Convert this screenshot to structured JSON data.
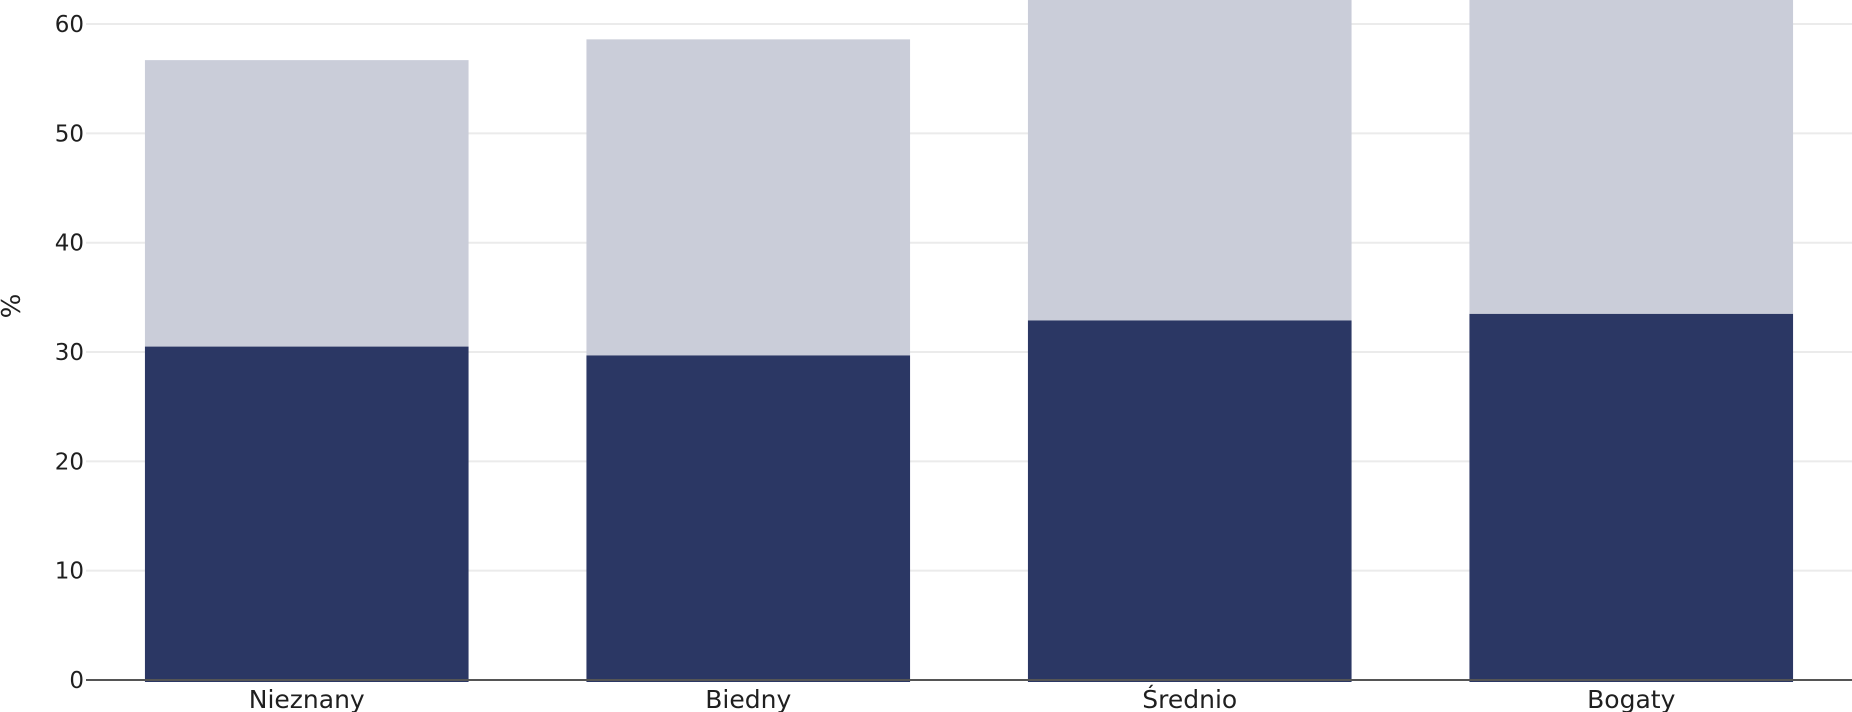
{
  "chart_data": {
    "type": "bar",
    "stacked": true,
    "categories": [
      "Nieznany",
      "Biedny",
      "Średnio",
      "Bogaty"
    ],
    "series": [
      {
        "values": [
          30.5,
          29.7,
          32.9,
          33.5
        ],
        "color": "#2b3764"
      },
      {
        "values": [
          26.2,
          28.9,
          34.1,
          33.5
        ],
        "color": "#cacdd9"
      }
    ],
    "title": "",
    "xlabel": "",
    "ylabel": "%",
    "ylim": [
      0,
      62.2
    ],
    "yticks": [
      0,
      10,
      20,
      30,
      40,
      50,
      60
    ],
    "yticks_text": [
      "0",
      "10",
      "20",
      "30",
      "40",
      "50",
      "60"
    ],
    "grid": true,
    "legend": "none",
    "colors": {
      "grid": "#ebebeb",
      "axis": "#555555"
    }
  }
}
